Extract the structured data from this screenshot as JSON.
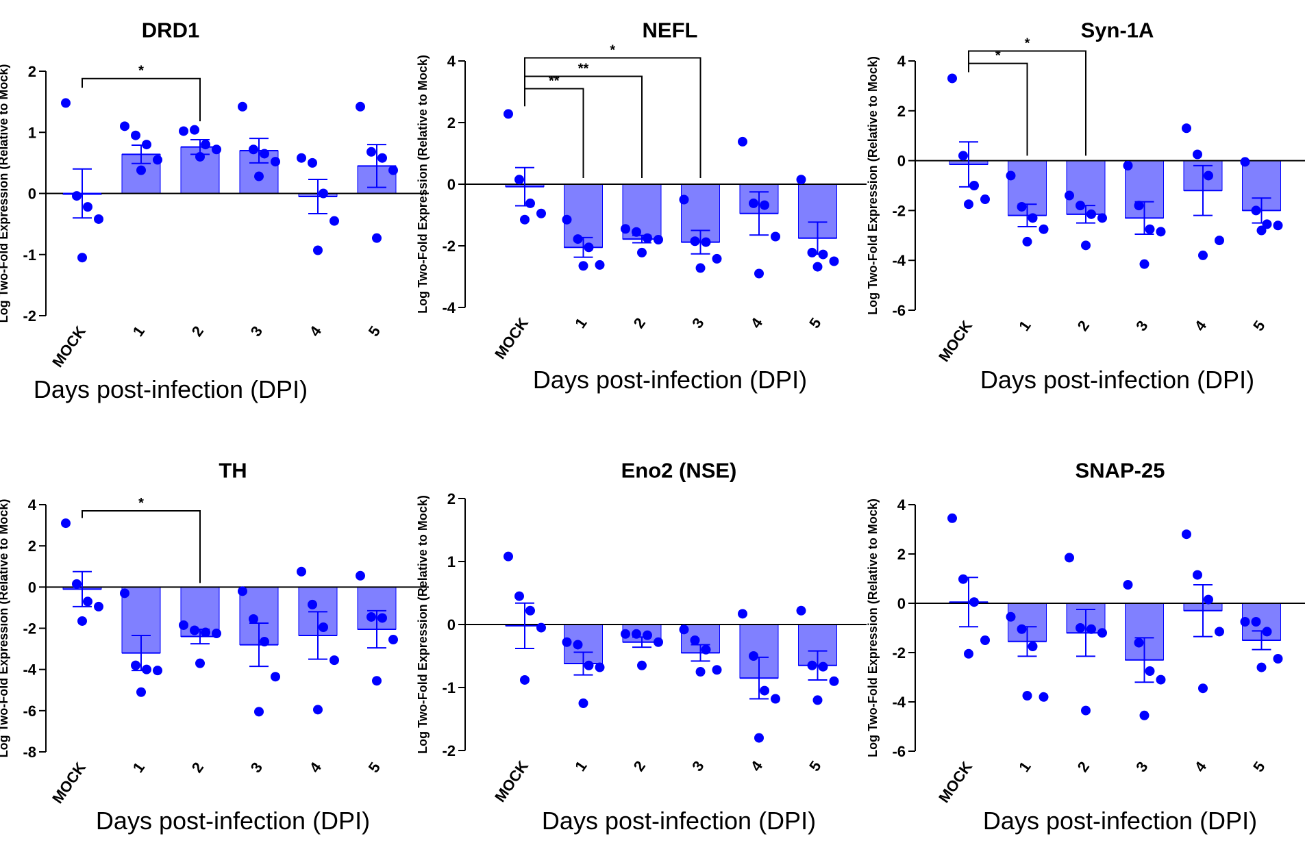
{
  "colors": {
    "bar": "#8080ff",
    "bar_edge": "#0000ff",
    "point": "#0000ff",
    "axis": "#000000"
  },
  "chart_data": [
    {
      "type": "bar",
      "title": "DRD1",
      "ylabel": "Log Two-Fold Expression (Relative to Mock)",
      "xlabel": "Days post-infection (DPI)",
      "categories": [
        "MOCK",
        "1",
        "2",
        "3",
        "4",
        "5"
      ],
      "ylim": [
        -2,
        2
      ],
      "yticks": [
        -2,
        -1,
        0,
        1,
        2
      ],
      "ytick_labels": [
        "-2",
        "-1",
        "0",
        "1",
        "2"
      ],
      "means": [
        0.0,
        0.64,
        0.76,
        0.7,
        -0.05,
        0.45
      ],
      "sem": [
        0.4,
        0.15,
        0.12,
        0.2,
        0.28,
        0.35
      ],
      "points": [
        [
          1.48,
          -0.04,
          -0.22,
          -0.42,
          -1.05
        ],
        [
          1.1,
          0.95,
          0.8,
          0.55,
          0.38
        ],
        [
          1.02,
          1.04,
          0.8,
          0.72,
          0.6
        ],
        [
          1.42,
          0.72,
          0.65,
          0.52,
          0.28
        ],
        [
          0.58,
          0.5,
          0.0,
          -0.45,
          -0.93
        ],
        [
          1.42,
          0.68,
          0.58,
          0.38,
          -0.73
        ]
      ],
      "significance": [
        {
          "from": "MOCK",
          "to": "2",
          "label": "*",
          "y": 1.88
        }
      ]
    },
    {
      "type": "bar",
      "title": "NEFL",
      "ylabel": "Log Two-Fold Expression (Relative to Mock)",
      "xlabel": "Days post-infection (DPI)",
      "categories": [
        "MOCK",
        "1",
        "2",
        "3",
        "4",
        "5"
      ],
      "ylim": [
        -4,
        4
      ],
      "yticks": [
        -4,
        -2,
        0,
        2,
        4
      ],
      "ytick_labels": [
        "-4",
        "-2",
        "0",
        "2",
        "4"
      ],
      "means": [
        -0.08,
        -2.05,
        -1.78,
        -1.88,
        -0.95,
        -1.75
      ],
      "sem": [
        0.62,
        0.32,
        0.12,
        0.38,
        0.7,
        0.52
      ],
      "points": [
        [
          2.28,
          0.15,
          -0.62,
          -0.95,
          -1.15
        ],
        [
          -1.15,
          -1.78,
          -2.05,
          -2.62,
          -2.65
        ],
        [
          -1.45,
          -1.55,
          -1.75,
          -1.8,
          -2.22
        ],
        [
          -0.5,
          -1.85,
          -1.88,
          -2.42,
          -2.72
        ],
        [
          1.38,
          -0.62,
          -0.68,
          -1.7,
          -2.9
        ],
        [
          0.15,
          -2.22,
          -2.28,
          -2.5,
          -2.68
        ]
      ],
      "significance": [
        {
          "from": "MOCK",
          "to": "1",
          "label": "**",
          "y": 3.1
        },
        {
          "from": "MOCK",
          "to": "2",
          "label": "**",
          "y": 3.5
        },
        {
          "from": "MOCK",
          "to": "3",
          "label": "*",
          "y": 4.1
        }
      ]
    },
    {
      "type": "bar",
      "title": "Syn-1A",
      "ylabel": "Log Two-Fold Expression (Relative to Mock)",
      "xlabel": "Days post-infection (DPI)",
      "categories": [
        "MOCK",
        "1",
        "2",
        "3",
        "4",
        "5"
      ],
      "ylim": [
        -6,
        4
      ],
      "yticks": [
        -6,
        -4,
        -2,
        0,
        2,
        4
      ],
      "ytick_labels": [
        "-6",
        "-4",
        "-2",
        "0",
        "2",
        "4"
      ],
      "means": [
        -0.15,
        -2.2,
        -2.15,
        -2.3,
        -1.2,
        -2.0
      ],
      "sem": [
        0.9,
        0.45,
        0.35,
        0.65,
        1.0,
        0.5
      ],
      "points": [
        [
          3.3,
          0.2,
          -1.0,
          -1.55,
          -1.75
        ],
        [
          -0.6,
          -1.85,
          -2.3,
          -2.75,
          -3.25
        ],
        [
          -1.4,
          -1.8,
          -2.15,
          -2.3,
          -3.4
        ],
        [
          -0.2,
          -1.8,
          -2.75,
          -2.85,
          -4.15
        ],
        [
          1.3,
          0.25,
          -0.6,
          -3.2,
          -3.8
        ],
        [
          -0.05,
          -2.0,
          -2.55,
          -2.6,
          -2.8
        ]
      ],
      "significance": [
        {
          "from": "MOCK",
          "to": "1",
          "label": "*",
          "y": 3.9
        },
        {
          "from": "MOCK",
          "to": "2",
          "label": "*",
          "y": 4.4
        }
      ]
    },
    {
      "type": "bar",
      "title": "TH",
      "ylabel": "Log Two-Fold Expression (Relative to Mock)",
      "xlabel": "Days post-infection (DPI)",
      "categories": [
        "MOCK",
        "1",
        "2",
        "3",
        "4",
        "5"
      ],
      "ylim": [
        -8,
        4
      ],
      "yticks": [
        -8,
        -6,
        -4,
        -2,
        0,
        2,
        4
      ],
      "ytick_labels": [
        "-8",
        "-6",
        "-4",
        "-2",
        "0",
        "2",
        "4"
      ],
      "means": [
        -0.1,
        -3.2,
        -2.4,
        -2.8,
        -2.35,
        -2.05
      ],
      "sem": [
        0.85,
        0.85,
        0.35,
        1.05,
        1.15,
        0.9
      ],
      "points": [
        [
          3.1,
          0.15,
          -0.7,
          -0.95,
          -1.65
        ],
        [
          -0.3,
          -3.8,
          -4.0,
          -4.05,
          -5.1
        ],
        [
          -1.85,
          -2.1,
          -2.2,
          -2.25,
          -3.7
        ],
        [
          -0.2,
          -1.55,
          -2.65,
          -4.35,
          -6.05
        ],
        [
          0.75,
          -0.85,
          -1.95,
          -3.55,
          -5.95
        ],
        [
          0.55,
          -1.45,
          -1.5,
          -2.55,
          -4.55
        ]
      ],
      "significance": [
        {
          "from": "MOCK",
          "to": "2",
          "label": "*",
          "y": 3.7
        }
      ]
    },
    {
      "type": "bar",
      "title": "Eno2 (NSE)",
      "ylabel": "Log Two-Fold Expression (Relative to Mock)",
      "xlabel": "Days post-infection (DPI)",
      "categories": [
        "MOCK",
        "1",
        "2",
        "3",
        "4",
        "5"
      ],
      "ylim": [
        -2,
        2
      ],
      "yticks": [
        -2,
        -1,
        0,
        1,
        2
      ],
      "ytick_labels": [
        "-2",
        "-1",
        "0",
        "1",
        "2"
      ],
      "means": [
        -0.02,
        -0.62,
        -0.28,
        -0.45,
        -0.85,
        -0.65
      ],
      "sem": [
        0.36,
        0.18,
        0.08,
        0.13,
        0.33,
        0.23
      ],
      "points": [
        [
          1.08,
          0.45,
          0.22,
          -0.05,
          -0.88
        ],
        [
          -0.28,
          -0.32,
          -0.65,
          -0.68,
          -1.25
        ],
        [
          -0.15,
          -0.15,
          -0.17,
          -0.28,
          -0.65
        ],
        [
          -0.08,
          -0.25,
          -0.4,
          -0.72,
          -0.75
        ],
        [
          0.17,
          -0.5,
          -1.05,
          -1.18,
          -1.8
        ],
        [
          0.22,
          -0.65,
          -0.67,
          -0.9,
          -1.2
        ]
      ],
      "significance": []
    },
    {
      "type": "bar",
      "title": "SNAP-25",
      "ylabel": "Log Two-Fold Expression (Relative to Mock)",
      "xlabel": "Days post-infection (DPI)",
      "categories": [
        "MOCK",
        "1",
        "2",
        "3",
        "4",
        "5"
      ],
      "ylim": [
        -6,
        4
      ],
      "yticks": [
        -6,
        -4,
        -2,
        0,
        2,
        4
      ],
      "ytick_labels": [
        "-6",
        "-4",
        "-2",
        "0",
        "2",
        "4"
      ],
      "means": [
        0.05,
        -1.55,
        -1.2,
        -2.3,
        -0.3,
        -1.5
      ],
      "sem": [
        1.0,
        0.6,
        0.95,
        0.9,
        1.05,
        0.38
      ],
      "points": [
        [
          3.45,
          0.98,
          0.05,
          -1.5,
          -2.05
        ],
        [
          -0.55,
          -1.05,
          -1.75,
          -3.8,
          -3.75
        ],
        [
          1.85,
          -1.0,
          -1.05,
          -1.2,
          -4.35
        ],
        [
          0.75,
          -1.6,
          -2.75,
          -3.1,
          -4.55
        ],
        [
          2.8,
          1.15,
          0.15,
          -1.15,
          -3.45
        ],
        [
          -0.75,
          -0.75,
          -1.15,
          -2.25,
          -2.6
        ]
      ],
      "significance": []
    }
  ]
}
